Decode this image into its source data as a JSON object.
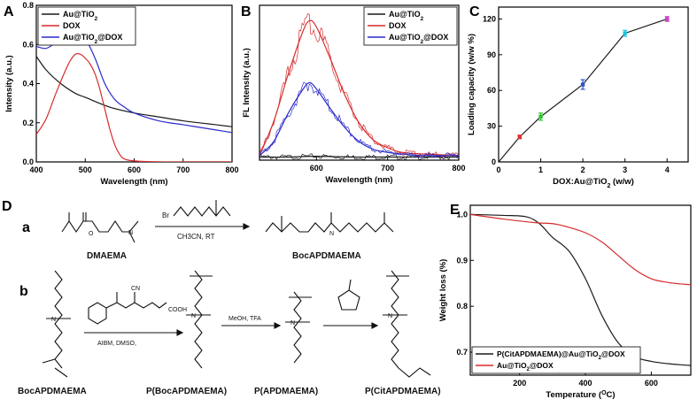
{
  "panel_labels": {
    "A": "A",
    "B": "B",
    "C": "C",
    "D": "D",
    "E": "E",
    "a": "a",
    "b": "b"
  },
  "colors": {
    "black": "#1a1a1a",
    "red": "#d62c2c",
    "blue": "#2a2ac8",
    "c_red": "#e03030",
    "c_green": "#30c030",
    "c_blue": "#3050d0",
    "c_cyan": "#20c0e0",
    "c_magenta": "#d040d0"
  },
  "chart_data": [
    {
      "id": "A",
      "type": "line",
      "title": "",
      "xlabel": "Wavelength (nm)",
      "ylabel": "Intensity (a.u.)",
      "xlim": [
        400,
        800
      ],
      "ylim": [
        0,
        0.8
      ],
      "xticks": [
        "400",
        "500",
        "600",
        "700",
        "800"
      ],
      "yticks": [
        "0.0",
        "0.2",
        "0.4",
        "0.6",
        "0.8"
      ],
      "legend": {
        "position": "top-left",
        "entries": [
          {
            "label": "Au@TiO",
            "sub": "2",
            "after": "",
            "color": "black"
          },
          {
            "label": "DOX",
            "sub": "",
            "after": "",
            "color": "red"
          },
          {
            "label": "Au@TiO",
            "sub": "2",
            "after": "@DOX",
            "color": "blue"
          }
        ]
      },
      "series": [
        {
          "name": "Au@TiO2",
          "color": "black",
          "x": [
            400,
            420,
            450,
            480,
            500,
            550,
            600,
            650,
            700,
            750,
            800
          ],
          "y": [
            0.54,
            0.47,
            0.4,
            0.35,
            0.33,
            0.28,
            0.25,
            0.23,
            0.21,
            0.195,
            0.18
          ]
        },
        {
          "name": "DOX",
          "color": "red",
          "x": [
            400,
            420,
            440,
            460,
            470,
            480,
            490,
            500,
            510,
            520,
            530,
            540,
            550,
            560,
            570,
            580,
            600,
            650,
            700,
            800
          ],
          "y": [
            0.14,
            0.22,
            0.35,
            0.47,
            0.52,
            0.55,
            0.55,
            0.53,
            0.5,
            0.45,
            0.37,
            0.27,
            0.17,
            0.09,
            0.04,
            0.015,
            0.005,
            0.0,
            0.0,
            0.0
          ]
        },
        {
          "name": "Au@TiO2@DOX",
          "color": "blue",
          "x": [
            400,
            420,
            440,
            460,
            480,
            500,
            520,
            540,
            560,
            580,
            600,
            650,
            700,
            750,
            800
          ],
          "y": [
            0.59,
            0.58,
            0.61,
            0.65,
            0.66,
            0.63,
            0.53,
            0.4,
            0.32,
            0.28,
            0.25,
            0.21,
            0.19,
            0.17,
            0.15
          ]
        }
      ]
    },
    {
      "id": "B",
      "type": "line",
      "title": "",
      "xlabel": "Wavelength (nm)",
      "ylabel": "FL Intensity (a.u.)",
      "xlim": [
        520,
        800
      ],
      "ylim": [
        0,
        1.0
      ],
      "xticks": [
        "600",
        "700",
        "800"
      ],
      "yticks": [],
      "legend": {
        "position": "top-right",
        "entries": [
          {
            "label": "Au@TiO",
            "sub": "2",
            "after": "",
            "color": "black"
          },
          {
            "label": "DOX",
            "sub": "",
            "after": "",
            "color": "red"
          },
          {
            "label": "Au@TiO",
            "sub": "2",
            "after": "@DOX",
            "color": "blue"
          }
        ]
      },
      "series": [
        {
          "name": "Au@TiO2",
          "color": "black",
          "x": [
            520,
            560,
            600,
            650,
            700,
            750,
            800
          ],
          "y": [
            0.02,
            0.02,
            0.025,
            0.02,
            0.02,
            0.02,
            0.02
          ]
        },
        {
          "name": "DOX",
          "color": "red",
          "x": [
            520,
            540,
            560,
            580,
            590,
            600,
            620,
            640,
            660,
            680,
            700,
            720,
            750,
            800
          ],
          "y": [
            0.03,
            0.25,
            0.55,
            0.82,
            0.9,
            0.86,
            0.65,
            0.42,
            0.24,
            0.13,
            0.08,
            0.05,
            0.04,
            0.03
          ]
        },
        {
          "name": "Au@TiO2@DOX",
          "color": "blue",
          "x": [
            520,
            540,
            560,
            580,
            590,
            600,
            620,
            640,
            660,
            680,
            700,
            720,
            750,
            800
          ],
          "y": [
            0.03,
            0.12,
            0.3,
            0.45,
            0.5,
            0.46,
            0.33,
            0.21,
            0.12,
            0.07,
            0.05,
            0.04,
            0.03,
            0.03
          ]
        }
      ]
    },
    {
      "id": "C",
      "type": "line",
      "title": "",
      "xlabel": "DOX:Au@TiO",
      "xlabel_sub": "2",
      "xlabel_after": " (w/w)",
      "ylabel": "Loading capacity (w/w %)",
      "xlim": [
        0,
        4.5
      ],
      "ylim": [
        0,
        130
      ],
      "xticks": [
        "0",
        "1",
        "2",
        "3",
        "4"
      ],
      "yticks": [
        "0",
        "30",
        "60",
        "90",
        "120"
      ],
      "series": [
        {
          "name": "Loading capacity",
          "color": "black",
          "x": [
            0,
            0.5,
            1,
            2,
            3,
            4
          ],
          "y": [
            0,
            21,
            38,
            65,
            108,
            120
          ],
          "err": [
            0,
            1.5,
            3,
            4,
            2.5,
            2
          ],
          "point_colors": [
            "",
            "c_red",
            "c_green",
            "c_blue",
            "c_cyan",
            "c_magenta"
          ]
        }
      ]
    },
    {
      "id": "E",
      "type": "line",
      "title": "",
      "xlabel": "Temperature (",
      "xlabel_sup": "O",
      "xlabel_after": "C)",
      "ylabel": "Weight loss (%)",
      "xlim": [
        50,
        720
      ],
      "ylim": [
        0.65,
        1.02
      ],
      "xticks": [
        "200",
        "400",
        "600"
      ],
      "yticks": [
        "0.7",
        "0.8",
        "0.9",
        "1.0"
      ],
      "legend": {
        "position": "bottom-left",
        "entries": [
          {
            "label": "P(CitAPDMAEMA)@Au@TiO",
            "sub": "2",
            "after": "@DOX",
            "color": "black"
          },
          {
            "label": "Au@TiO",
            "sub": "2",
            "after": "@DOX",
            "color": "red"
          }
        ]
      },
      "series": [
        {
          "name": "P(CitAPDMAEMA)@Au@TiO2@DOX",
          "color": "black",
          "x": [
            50,
            150,
            220,
            260,
            300,
            350,
            400,
            450,
            500,
            550,
            600,
            650,
            700,
            720
          ],
          "y": [
            1.0,
            0.998,
            0.995,
            0.98,
            0.95,
            0.92,
            0.86,
            0.78,
            0.72,
            0.69,
            0.68,
            0.675,
            0.672,
            0.671
          ]
        },
        {
          "name": "Au@TiO2@DOX",
          "color": "red",
          "x": [
            50,
            150,
            250,
            300,
            350,
            400,
            450,
            500,
            550,
            600,
            650,
            700,
            720
          ],
          "y": [
            1.0,
            0.99,
            0.982,
            0.98,
            0.972,
            0.96,
            0.94,
            0.91,
            0.88,
            0.86,
            0.852,
            0.848,
            0.847
          ]
        }
      ]
    }
  ],
  "scheme": {
    "row_a": {
      "reagent_top": "Br",
      "conditions": "CH3CN, RT",
      "label_left": "DMAEMA",
      "label_right": "BocAPDMAEMA"
    },
    "row_b": {
      "conditions_1": "AIBM, DMSO,",
      "raft_label": "COOH",
      "raft_cn": "CN",
      "conditions_2": "MeOH, TFA",
      "labels": [
        "BocAPDMAEMA",
        "P(BocAPDMAEMA)",
        "P(APDMAEMA)",
        "P(CitAPDMAEMA)"
      ]
    }
  }
}
